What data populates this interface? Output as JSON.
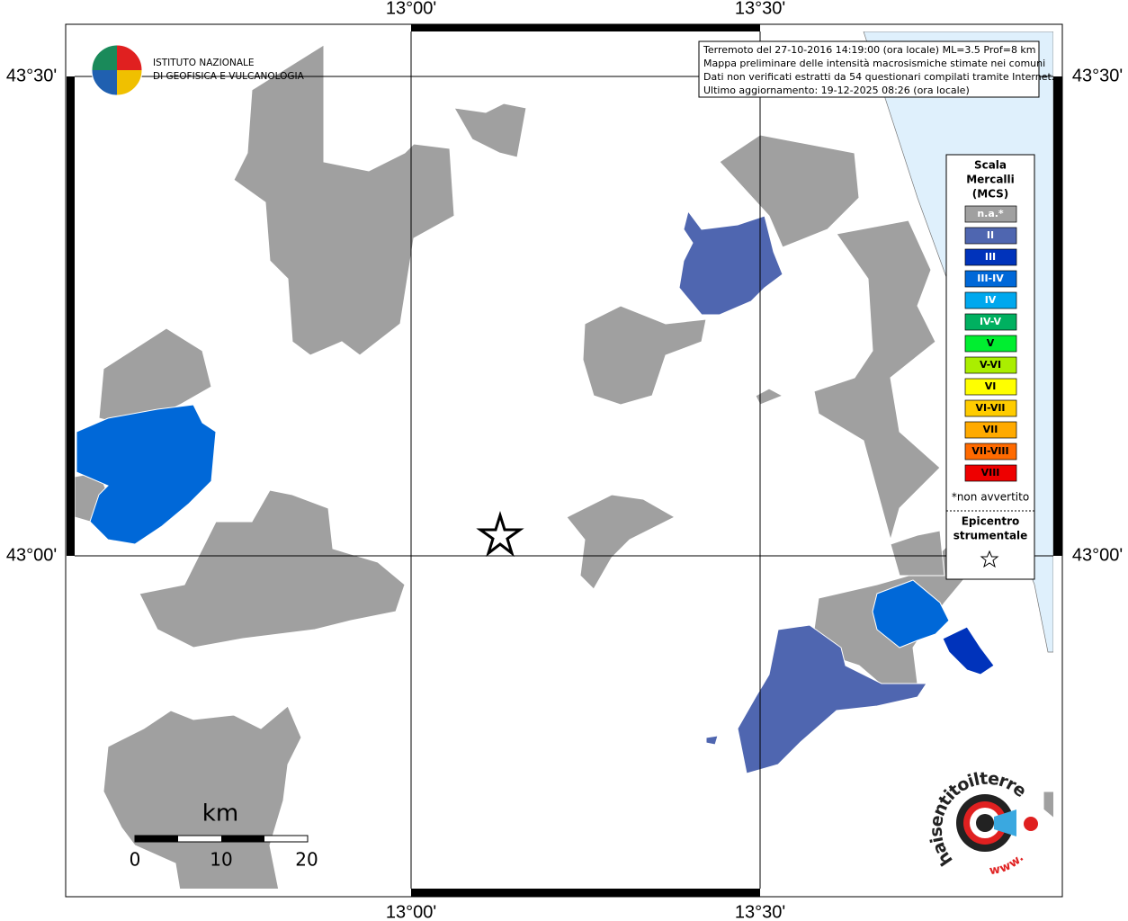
{
  "map": {
    "lon_labels": [
      "13°00'",
      "13°30'"
    ],
    "lat_labels": [
      "43°30'",
      "43°00'"
    ],
    "logo": {
      "line1": "ISTITUTO NAZIONALE",
      "line2": "DI GEOFISICA E VULCANOLOGIA"
    },
    "info": [
      "Terremoto del 27-10-2016 14:19:00 (ora locale) ML=3.5 Prof=8 km",
      "Mappa preliminare delle intensità macrosismiche stimate nei comuni",
      "Dati non verificati estratti da 54 questionari compilati tramite Internet.",
      "Ultimo aggiornamento: 19-12-2025 08:26 (ora locale)"
    ],
    "legend": {
      "title": [
        "Scala",
        "Mercalli",
        "(MCS)"
      ],
      "items": [
        {
          "label": "n.a.*",
          "color": "#a0a0a0"
        },
        {
          "label": "II",
          "color": "#4f66b0"
        },
        {
          "label": "III",
          "color": "#0033bb"
        },
        {
          "label": "III-IV",
          "color": "#0068d8"
        },
        {
          "label": "IV",
          "color": "#00a8ee"
        },
        {
          "label": "IV-V",
          "color": "#00b060"
        },
        {
          "label": "V",
          "color": "#00ee30"
        },
        {
          "label": "V-VI",
          "color": "#aaee00"
        },
        {
          "label": "VI",
          "color": "#ffff00"
        },
        {
          "label": "VI-VII",
          "color": "#ffcc00"
        },
        {
          "label": "VII",
          "color": "#ffaa00"
        },
        {
          "label": "VII-VIII",
          "color": "#ff6a00"
        },
        {
          "label": "VIII",
          "color": "#ee0000"
        }
      ],
      "note": "*non avvertito",
      "epicenter": [
        "Epicentro",
        "strumentale"
      ]
    },
    "scale": {
      "unit": "km",
      "ticks": [
        0,
        10,
        20
      ]
    },
    "site": {
      "prefix": "www.",
      "name": "haisentitoilterremoto.it"
    }
  }
}
